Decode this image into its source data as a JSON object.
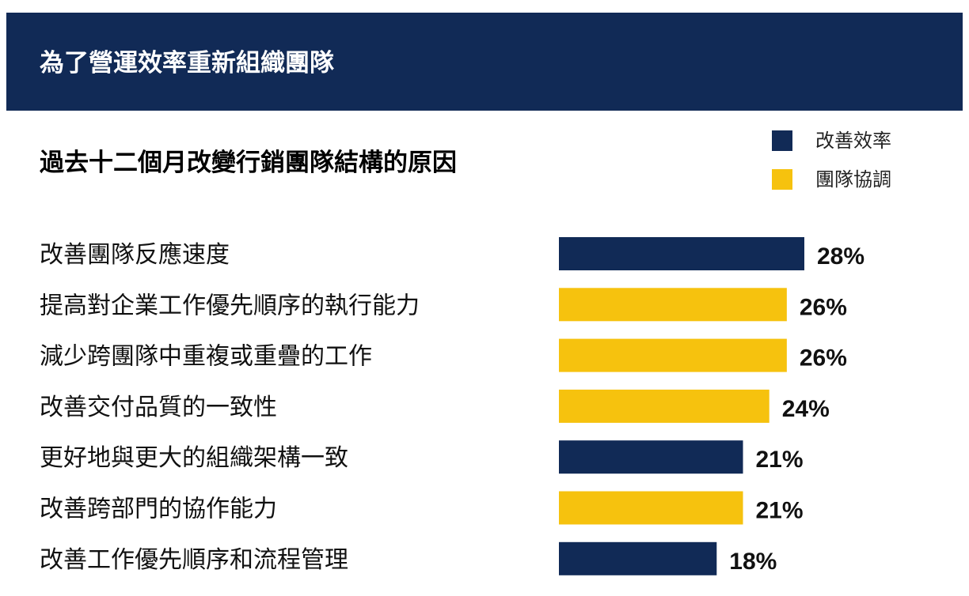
{
  "banner": {
    "title": "為了營運效率重新組織團隊"
  },
  "colors": {
    "banner_bg": "#112a56",
    "navy": "#112a56",
    "yellow": "#f6c20e"
  },
  "chart_data": {
    "type": "bar",
    "orientation": "horizontal",
    "title": "過去十二個月改變行銷團隊結構的原因",
    "legend": {
      "placement": "top-right",
      "entries": [
        {
          "name": "改善效率",
          "color": "#112a56"
        },
        {
          "name": "團隊協調",
          "color": "#f6c20e"
        }
      ]
    },
    "categories": [
      "改善團隊反應速度",
      "提高對企業工作優先順序的執行能力",
      "減少跨團隊中重複或重疊的工作",
      "改善交付品質的一致性",
      "更好地與更大的組織架構一致",
      "改善跨部門的協作能力",
      "改善工作優先順序和流程管理"
    ],
    "values": [
      28,
      26,
      26,
      24,
      21,
      21,
      18
    ],
    "value_labels": [
      "28%",
      "26%",
      "26%",
      "24%",
      "21%",
      "21%",
      "18%"
    ],
    "series_of_each": [
      "改善效率",
      "團隊協調",
      "團隊協調",
      "團隊協調",
      "改善效率",
      "團隊協調",
      "改善效率"
    ],
    "unit": "%",
    "grid": false,
    "xlabel": "",
    "ylabel": ""
  }
}
